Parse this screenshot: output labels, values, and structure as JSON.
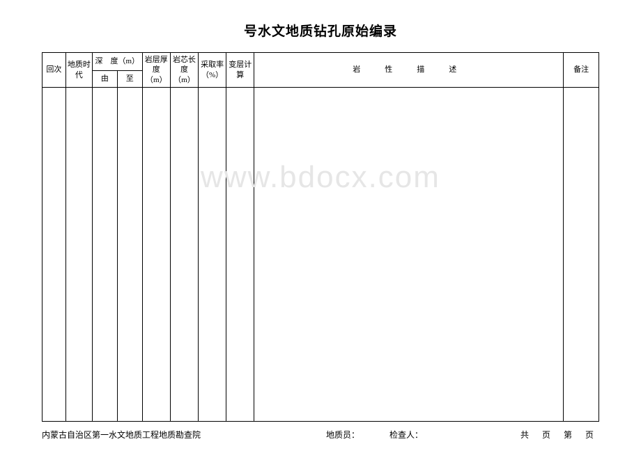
{
  "title": "号水文地质钻孔原始编录",
  "watermark": "www.bdocx.com",
  "columns": {
    "col1": "回次",
    "col2": "地质时代",
    "col3_group": "深　度（m）",
    "col3a": "由",
    "col3b": "至",
    "col4": "岩层厚度（m）",
    "col5": "岩芯长度（m）",
    "col6": "采取率（%）",
    "col7": "变层计算",
    "col8": "岩　性　描　述",
    "col9": "备注"
  },
  "widths": {
    "col1": 32,
    "col2": 36,
    "col3a": 34,
    "col3b": 34,
    "col4": 38,
    "col5": 38,
    "col6": 38,
    "col7": 38,
    "col8": 420,
    "col9": 48
  },
  "footer": {
    "org": "内蒙古自治区第一水文地质工程地质勘查院",
    "geologist_label": "地质员：",
    "inspector_label": "检查人：",
    "page_text": "共 页 第 页"
  },
  "colors": {
    "border": "#000000",
    "background": "#ffffff",
    "watermark": "#e6e6e6"
  },
  "fonts": {
    "title_size": 19,
    "header_size": 11,
    "footer_size": 12,
    "watermark_size": 44
  }
}
